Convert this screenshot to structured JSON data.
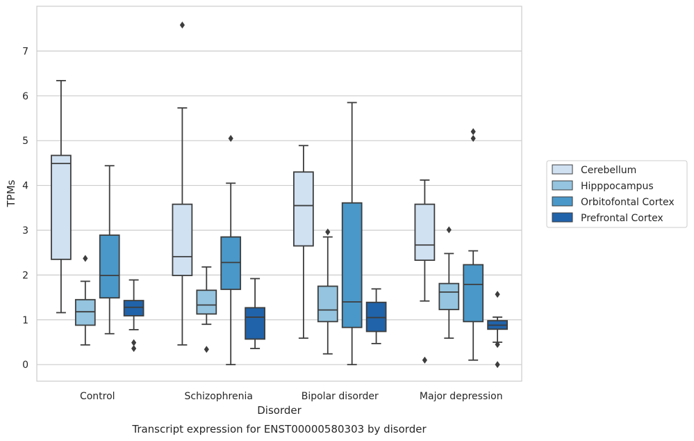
{
  "chart_data": {
    "type": "boxplot",
    "caption": "Transcript expression for ENST00000580303 by disorder",
    "xlabel": "Disorder",
    "ylabel": "TPMs",
    "ylim": [
      -0.37,
      8.0
    ],
    "yticks": [
      0,
      1,
      2,
      3,
      4,
      5,
      6,
      7
    ],
    "grid": "horizontal",
    "legend_position": "right",
    "categories": [
      "Control",
      "Schizophrenia",
      "Bipolar disorder",
      "Major depression"
    ],
    "series": [
      {
        "name": "Cerebellum",
        "color": "#d0e1f2",
        "boxes": [
          {
            "whislo": 1.16,
            "q1": 2.35,
            "med": 4.49,
            "q3": 4.67,
            "whishi": 6.34,
            "fliers": []
          },
          {
            "whislo": 0.44,
            "q1": 1.99,
            "med": 2.41,
            "q3": 3.58,
            "whishi": 5.73,
            "fliers": [
              7.58
            ]
          },
          {
            "whislo": 0.59,
            "q1": 2.65,
            "med": 3.55,
            "q3": 4.3,
            "whishi": 4.89,
            "fliers": []
          },
          {
            "whislo": 1.42,
            "q1": 2.33,
            "med": 2.67,
            "q3": 3.58,
            "whishi": 4.12,
            "fliers": [
              0.1
            ]
          }
        ]
      },
      {
        "name": "Hipppocampus",
        "color": "#94c4df",
        "boxes": [
          {
            "whislo": 0.44,
            "q1": 0.88,
            "med": 1.18,
            "q3": 1.45,
            "whishi": 1.86,
            "fliers": [
              2.37
            ]
          },
          {
            "whislo": 0.9,
            "q1": 1.13,
            "med": 1.33,
            "q3": 1.66,
            "whishi": 2.18,
            "fliers": [
              0.34
            ]
          },
          {
            "whislo": 0.24,
            "q1": 0.96,
            "med": 1.22,
            "q3": 1.75,
            "whishi": 2.85,
            "fliers": [
              2.96
            ]
          },
          {
            "whislo": 0.59,
            "q1": 1.23,
            "med": 1.62,
            "q3": 1.81,
            "whishi": 2.48,
            "fliers": [
              3.01
            ]
          }
        ]
      },
      {
        "name": "Orbitofontal Cortex",
        "color": "#4a98c9",
        "boxes": [
          {
            "whislo": 0.69,
            "q1": 1.49,
            "med": 1.99,
            "q3": 2.89,
            "whishi": 4.44,
            "fliers": []
          },
          {
            "whislo": 0.0,
            "q1": 1.68,
            "med": 2.28,
            "q3": 2.85,
            "whishi": 4.05,
            "fliers": [
              5.05
            ]
          },
          {
            "whislo": 0.0,
            "q1": 0.83,
            "med": 1.4,
            "q3": 3.61,
            "whishi": 5.85,
            "fliers": []
          },
          {
            "whislo": 0.1,
            "q1": 0.96,
            "med": 1.79,
            "q3": 2.23,
            "whishi": 2.54,
            "fliers": [
              5.05,
              5.2
            ]
          }
        ]
      },
      {
        "name": "Prefrontal Cortex",
        "color": "#2163aa",
        "boxes": [
          {
            "whislo": 0.78,
            "q1": 1.09,
            "med": 1.28,
            "q3": 1.43,
            "whishi": 1.89,
            "fliers": [
              0.36,
              0.49
            ]
          },
          {
            "whislo": 0.36,
            "q1": 0.57,
            "med": 1.06,
            "q3": 1.27,
            "whishi": 1.92,
            "fliers": []
          },
          {
            "whislo": 0.47,
            "q1": 0.74,
            "med": 1.05,
            "q3": 1.39,
            "whishi": 1.69,
            "fliers": []
          },
          {
            "whislo": 0.5,
            "q1": 0.79,
            "med": 0.88,
            "q3": 0.98,
            "whishi": 1.06,
            "fliers": [
              0.0,
              0.45,
              1.57
            ]
          }
        ]
      }
    ]
  }
}
